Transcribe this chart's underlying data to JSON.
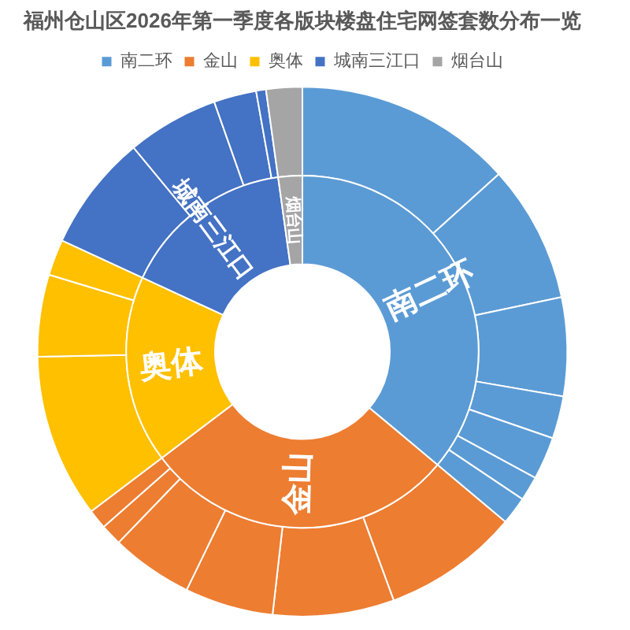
{
  "chart_data": [
    {
      "type": "donut",
      "title": "福州仓山区2026年第一季度各版块楼盘住宅网签套数分布一览",
      "legend": "top",
      "categories": [
        "南二环",
        "金山",
        "奥体",
        "城南三江口",
        "烟台山"
      ],
      "values": [
        36.1,
        28.6,
        17.2,
        15.9,
        2.2
      ],
      "colors": [
        "#5b9bd5",
        "#ed7d31",
        "#ffc000",
        "#4472c4",
        "#a5a5a5"
      ]
    },
    {
      "type": "donut",
      "categories": [
        null,
        null,
        null,
        null,
        null,
        null,
        null,
        null,
        null,
        null,
        null,
        null,
        null,
        null,
        null,
        null,
        null,
        null,
        null,
        null,
        null
      ],
      "values": [
        13.3,
        8.4,
        6.0,
        2.6,
        2.6,
        1.5,
        1.7,
        8.3,
        7.4,
        5.4,
        5.0,
        1.3,
        1.2,
        10.0,
        5.0,
        2.2,
        7.1,
        5.6,
        2.6,
        0.6,
        2.2
      ],
      "colors": [
        "#5b9bd5",
        "#5b9bd5",
        "#5b9bd5",
        "#5b9bd5",
        "#5b9bd5",
        "#5b9bd5",
        "#5b9bd5",
        "#ed7d31",
        "#ed7d31",
        "#ed7d31",
        "#ed7d31",
        "#ed7d31",
        "#ed7d31",
        "#ffc000",
        "#ffc000",
        "#ffc000",
        "#4472c4",
        "#4472c4",
        "#4472c4",
        "#4472c4",
        "#a5a5a5"
      ]
    }
  ]
}
